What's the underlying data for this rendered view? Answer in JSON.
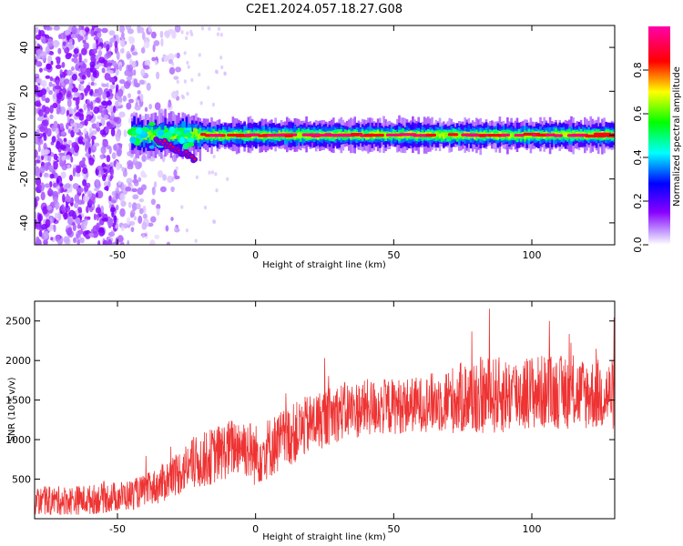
{
  "title": "C2E1.2024.057.18.27.G08",
  "chart_data": [
    {
      "type": "heatmap",
      "xlabel": "Height of straight line (km)",
      "ylabel": "Frequency (Hz)",
      "xlim": [
        -80,
        130
      ],
      "ylim": [
        -50,
        50
      ],
      "xticks": [
        -50,
        0,
        50,
        100
      ],
      "yticks": [
        -40,
        -20,
        0,
        20,
        40
      ],
      "colorbar": {
        "label": "Normalized spectral amplitude",
        "range": [
          0,
          1
        ],
        "ticks": [
          0.0,
          0.2,
          0.4,
          0.6,
          0.8
        ],
        "colors": [
          "#ffffff",
          "#8800ff",
          "#0000ff",
          "#00ffff",
          "#00ff00",
          "#ffff00",
          "#ff0000",
          "#ff00aa"
        ]
      },
      "features": [
        {
          "description_key": "noise",
          "x_range": [
            -80,
            -30
          ],
          "y_range": [
            -50,
            50
          ]
        },
        {
          "description_key": "signal_band",
          "x_range": [
            -45,
            130
          ],
          "y_center": 0
        }
      ]
    },
    {
      "type": "line",
      "xlabel": "Height of straight line (km)",
      "ylabel": "SNR (10 * v/v)",
      "xlim": [
        -80,
        130
      ],
      "ylim": [
        0,
        2750
      ],
      "xticks": [
        -50,
        0,
        50,
        100
      ],
      "yticks": [
        500,
        1000,
        1500,
        2000,
        2500
      ],
      "color": "#ee3333",
      "trend": {
        "x": [
          -80,
          -60,
          -45,
          -35,
          -25,
          -15,
          -5,
          0,
          10,
          20,
          30,
          40,
          50,
          60,
          70,
          80,
          90,
          100,
          110,
          120,
          130
        ],
        "y": [
          220,
          240,
          300,
          420,
          650,
          800,
          950,
          800,
          1000,
          1200,
          1350,
          1400,
          1420,
          1450,
          1500,
          1550,
          1560,
          1600,
          1600,
          1580,
          1560
        ]
      },
      "spread": {
        "x": [
          -80,
          -40,
          -20,
          0,
          20,
          60,
          80,
          130
        ],
        "y": [
          180,
          200,
          350,
          400,
          380,
          350,
          500,
          450
        ]
      }
    }
  ]
}
